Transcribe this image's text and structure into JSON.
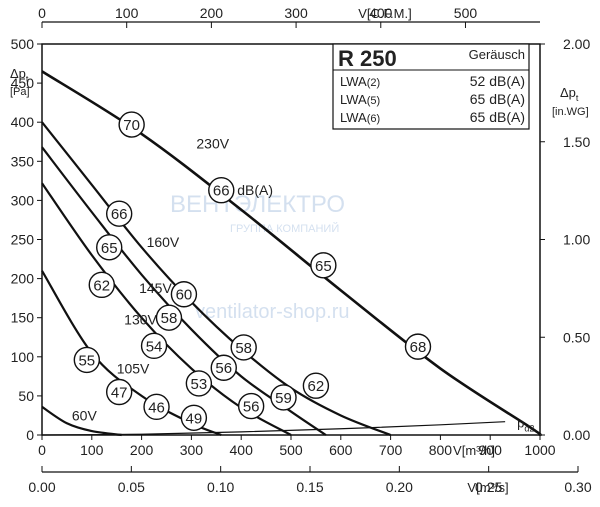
{
  "chart_data": {
    "type": "line",
    "title": "R 250",
    "x_primary": {
      "label": "V[m³/h]",
      "range": [
        0,
        1000
      ],
      "ticks": [
        0,
        100,
        200,
        300,
        400,
        500,
        600,
        700,
        800,
        900,
        1000
      ]
    },
    "x_top": {
      "label": "V[C.F.M.]",
      "range": [
        0,
        588
      ],
      "ticks": [
        0,
        100,
        200,
        300,
        400,
        500
      ]
    },
    "x_bottom": {
      "label": "V[m³/s]",
      "range": [
        0,
        0.3
      ],
      "ticks": [
        "0.00",
        "0.05",
        "0.10",
        "0.15",
        "0.20",
        "0.25",
        "0.30"
      ]
    },
    "y_left": {
      "label": "Δp",
      "sub": "t",
      "unit": "[Pa]",
      "range": [
        0,
        500
      ],
      "ticks": [
        0,
        50,
        100,
        150,
        200,
        250,
        300,
        350,
        400,
        450,
        500
      ]
    },
    "y_right": {
      "label": "Δp",
      "sub": "t",
      "unit": "[in.WG]",
      "range": [
        0,
        2.0
      ],
      "ticks": [
        "0.00",
        "0.50",
        "1.00",
        "1.50",
        "2.00"
      ]
    },
    "noise_box": {
      "heading": "Geräusch",
      "rows": [
        {
          "label": "LWA",
          "sub": "(2)",
          "value": "52 dB(A)"
        },
        {
          "label": "LWA",
          "sub": "(5)",
          "value": "65 dB(A)"
        },
        {
          "label": "LWA",
          "sub": "(6)",
          "value": "65 dB(A)"
        }
      ]
    },
    "series": [
      {
        "name": "230V",
        "x": [
          0,
          200,
          400,
          600,
          800,
          980,
          1000
        ],
        "y": [
          465,
          385,
          288,
          185,
          85,
          10,
          0
        ]
      },
      {
        "name": "160V",
        "x": [
          0,
          100,
          200,
          300,
          400,
          500,
          600,
          700
        ],
        "y": [
          400,
          320,
          240,
          170,
          110,
          60,
          25,
          0
        ]
      },
      {
        "name": "145V",
        "x": [
          0,
          100,
          200,
          300,
          400,
          500,
          570
        ],
        "y": [
          368,
          285,
          205,
          135,
          75,
          30,
          0
        ]
      },
      {
        "name": "130V",
        "x": [
          0,
          100,
          200,
          300,
          400,
          500
        ],
        "y": [
          322,
          230,
          150,
          85,
          35,
          0
        ]
      },
      {
        "name": "105V",
        "x": [
          0,
          100,
          200,
          300,
          360
        ],
        "y": [
          210,
          105,
          50,
          15,
          0
        ]
      },
      {
        "name": "60V",
        "x": [
          0,
          50,
          100,
          160
        ],
        "y": [
          36,
          15,
          5,
          0
        ]
      }
    ],
    "system_curve": {
      "label": "p",
      "sub": "d2",
      "x": [
        0,
        200,
        400,
        600,
        800,
        930
      ],
      "y": [
        0,
        1,
        4,
        8,
        13,
        17
      ]
    },
    "voltage_labels": [
      {
        "text": "230V",
        "x": 310,
        "y": 373
      },
      {
        "text": "160V",
        "x": 210,
        "y": 247
      },
      {
        "text": "145V",
        "x": 195,
        "y": 188
      },
      {
        "text": "130V",
        "x": 165,
        "y": 148
      },
      {
        "text": "105V",
        "x": 150,
        "y": 85
      },
      {
        "text": "60V",
        "x": 60,
        "y": 25
      }
    ],
    "noise_markers": [
      {
        "value": "70",
        "x": 180,
        "y": 397
      },
      {
        "value": "66",
        "x": 360,
        "y": 313,
        "suffix": "dB(A)"
      },
      {
        "value": "65",
        "x": 565,
        "y": 217
      },
      {
        "value": "68",
        "x": 755,
        "y": 113
      },
      {
        "value": "66",
        "x": 155,
        "y": 283
      },
      {
        "value": "65",
        "x": 135,
        "y": 240
      },
      {
        "value": "62",
        "x": 120,
        "y": 192
      },
      {
        "value": "60",
        "x": 285,
        "y": 180
      },
      {
        "value": "58",
        "x": 255,
        "y": 150
      },
      {
        "value": "54",
        "x": 225,
        "y": 114
      },
      {
        "value": "58",
        "x": 405,
        "y": 112
      },
      {
        "value": "56",
        "x": 365,
        "y": 86
      },
      {
        "value": "53",
        "x": 315,
        "y": 66
      },
      {
        "value": "62",
        "x": 550,
        "y": 63
      },
      {
        "value": "59",
        "x": 485,
        "y": 48
      },
      {
        "value": "56",
        "x": 420,
        "y": 37
      },
      {
        "value": "55",
        "x": 90,
        "y": 96
      },
      {
        "value": "47",
        "x": 155,
        "y": 55
      },
      {
        "value": "46",
        "x": 230,
        "y": 36
      },
      {
        "value": "49",
        "x": 305,
        "y": 22
      }
    ]
  },
  "watermark": {
    "brand": "ВЕНТЭЛЕКТРО",
    "group": "ГРУППА КОМПАНИЙ",
    "site": "ventilator-shop.ru"
  }
}
